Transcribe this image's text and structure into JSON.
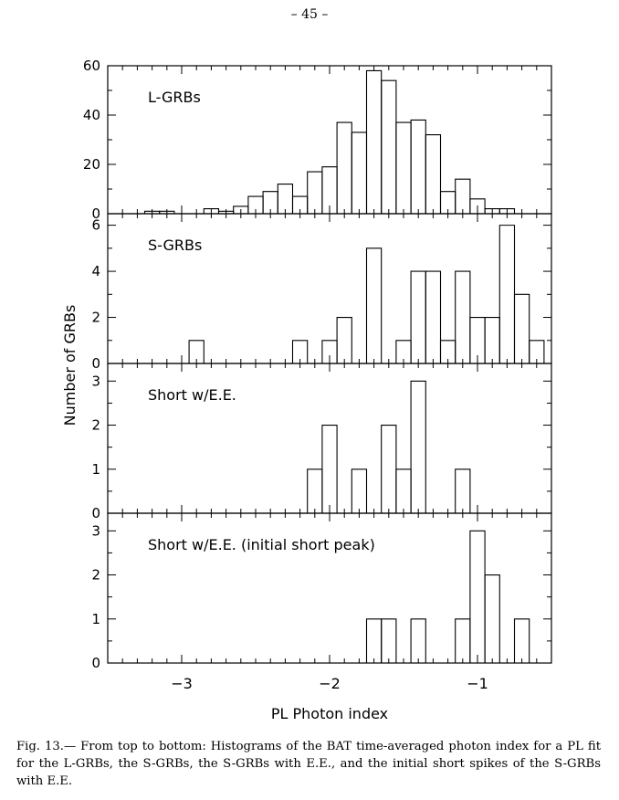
{
  "page": {
    "number": "– 45 –"
  },
  "caption": "Fig. 13.— From top to bottom: Histograms of the BAT time-averaged photon index for a PL fit for the L-GRBs, the S-GRBs, the S-GRBs with E.E., and the initial short spikes of the S-GRBs with E.E.",
  "chart_data": {
    "type": "bar",
    "xlabel": "PL Photon index",
    "ylabel": "Number of GRBs",
    "xlim": [
      -3.5,
      -0.5
    ],
    "bin_width": 0.1,
    "xticks_major": [
      -3,
      -2,
      -1
    ],
    "xtick_labels": [
      "−3",
      "−2",
      "−1"
    ],
    "grid": false,
    "panels": [
      {
        "label": "L-GRBs",
        "ylim": [
          0,
          60
        ],
        "yticks": [
          0,
          20,
          40,
          60
        ],
        "bins": [
          {
            "x0": -3.25,
            "value": 1
          },
          {
            "x0": -3.15,
            "value": 1
          },
          {
            "x0": -2.85,
            "value": 2
          },
          {
            "x0": -2.75,
            "value": 1
          },
          {
            "x0": -2.65,
            "value": 3
          },
          {
            "x0": -2.55,
            "value": 7
          },
          {
            "x0": -2.45,
            "value": 9
          },
          {
            "x0": -2.35,
            "value": 12
          },
          {
            "x0": -2.25,
            "value": 7
          },
          {
            "x0": -2.15,
            "value": 17
          },
          {
            "x0": -2.05,
            "value": 19
          },
          {
            "x0": -1.95,
            "value": 37
          },
          {
            "x0": -1.85,
            "value": 33
          },
          {
            "x0": -1.75,
            "value": 58
          },
          {
            "x0": -1.65,
            "value": 54
          },
          {
            "x0": -1.55,
            "value": 37
          },
          {
            "x0": -1.45,
            "value": 38
          },
          {
            "x0": -1.35,
            "value": 32
          },
          {
            "x0": -1.25,
            "value": 9
          },
          {
            "x0": -1.15,
            "value": 14
          },
          {
            "x0": -1.05,
            "value": 6
          },
          {
            "x0": -0.95,
            "value": 2
          },
          {
            "x0": -0.85,
            "value": 2
          }
        ]
      },
      {
        "label": "S-GRBs",
        "ylim": [
          0,
          6.5
        ],
        "yticks": [
          0,
          2,
          4,
          6
        ],
        "bins": [
          {
            "x0": -2.95,
            "value": 1
          },
          {
            "x0": -2.25,
            "value": 1
          },
          {
            "x0": -2.05,
            "value": 1
          },
          {
            "x0": -1.95,
            "value": 2
          },
          {
            "x0": -1.75,
            "value": 5
          },
          {
            "x0": -1.55,
            "value": 1
          },
          {
            "x0": -1.45,
            "value": 4
          },
          {
            "x0": -1.35,
            "value": 4
          },
          {
            "x0": -1.25,
            "value": 1
          },
          {
            "x0": -1.15,
            "value": 4
          },
          {
            "x0": -1.05,
            "value": 2
          },
          {
            "x0": -0.95,
            "value": 2
          },
          {
            "x0": -0.85,
            "value": 6
          },
          {
            "x0": -0.75,
            "value": 3
          },
          {
            "x0": -0.65,
            "value": 1
          }
        ]
      },
      {
        "label": "Short w/E.E.",
        "ylim": [
          0,
          3.4
        ],
        "yticks": [
          0,
          1,
          2,
          3
        ],
        "bins": [
          {
            "x0": -2.15,
            "value": 1
          },
          {
            "x0": -2.05,
            "value": 2
          },
          {
            "x0": -1.85,
            "value": 1
          },
          {
            "x0": -1.65,
            "value": 2
          },
          {
            "x0": -1.55,
            "value": 1
          },
          {
            "x0": -1.45,
            "value": 3
          },
          {
            "x0": -1.15,
            "value": 1
          }
        ]
      },
      {
        "label": "Short w/E.E. (initial short peak)",
        "ylim": [
          0,
          3.4
        ],
        "yticks": [
          0,
          1,
          2,
          3
        ],
        "bins": [
          {
            "x0": -1.75,
            "value": 1
          },
          {
            "x0": -1.65,
            "value": 1
          },
          {
            "x0": -1.45,
            "value": 1
          },
          {
            "x0": -1.15,
            "value": 1
          },
          {
            "x0": -1.05,
            "value": 3
          },
          {
            "x0": -0.95,
            "value": 2
          },
          {
            "x0": -0.75,
            "value": 1
          }
        ]
      }
    ]
  }
}
